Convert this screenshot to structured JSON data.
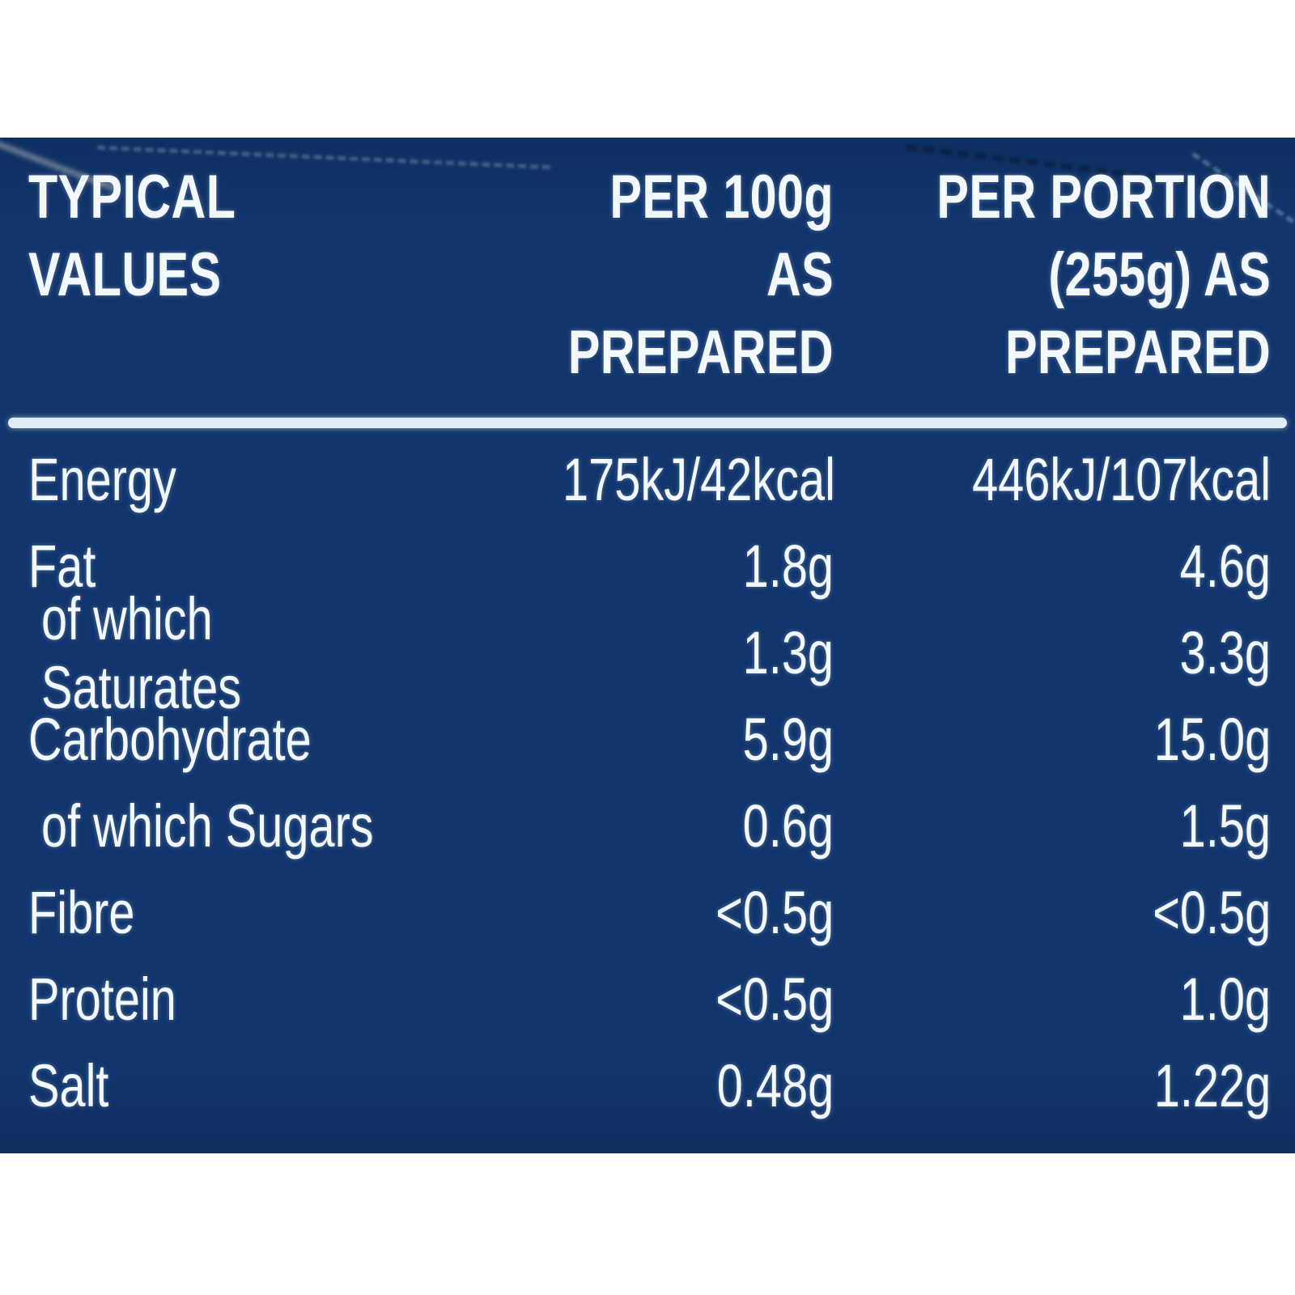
{
  "colors": {
    "panel_bg": "#11356C",
    "panel_bg_top": "#0E2F61",
    "panel_bg_bottom": "#102F60",
    "text": "#F3F8FD",
    "rule": "#E2EDF7"
  },
  "table": {
    "header": {
      "typical_values": "TYPICAL\nVALUES",
      "per_100g": "PER 100g\nAS PREPARED",
      "per_portion": "PER PORTION\n(255g) AS\nPREPARED"
    },
    "rows": [
      {
        "label": "Energy",
        "indent": false,
        "per_100g": "175kJ/42kcal",
        "per_portion": "446kJ/107kcal"
      },
      {
        "label": "Fat",
        "indent": false,
        "per_100g": "1.8g",
        "per_portion": "4.6g"
      },
      {
        "label": "of which Saturates",
        "indent": true,
        "per_100g": "1.3g",
        "per_portion": "3.3g"
      },
      {
        "label": "Carbohydrate",
        "indent": false,
        "per_100g": "5.9g",
        "per_portion": "15.0g"
      },
      {
        "label": "of which Sugars",
        "indent": true,
        "per_100g": "0.6g",
        "per_portion": "1.5g"
      },
      {
        "label": "Fibre",
        "indent": false,
        "per_100g": "<0.5g",
        "per_portion": "<0.5g"
      },
      {
        "label": "Protein",
        "indent": false,
        "per_100g": "<0.5g",
        "per_portion": "1.0g"
      },
      {
        "label": "Salt",
        "indent": false,
        "per_100g": "0.48g",
        "per_portion": "1.22g"
      }
    ]
  }
}
